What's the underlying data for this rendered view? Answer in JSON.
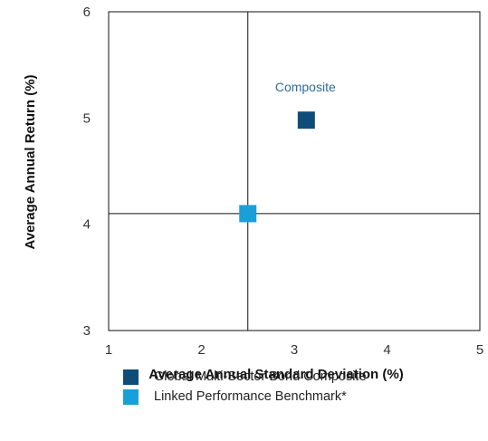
{
  "chart_data": {
    "type": "scatter",
    "title": "",
    "xlabel": "Average Annual Standard Deviation (%)",
    "ylabel": "Average Annual Return (%)",
    "xlim": [
      1,
      5
    ],
    "ylim": [
      3,
      6
    ],
    "xticks": [
      "1",
      "2",
      "3",
      "4",
      "5"
    ],
    "yticks": [
      "3",
      "4",
      "5",
      "6"
    ],
    "grid": false,
    "reference_lines": {
      "x": 2.5,
      "y": 4.1
    },
    "series": [
      {
        "name": "Global Multi-Sector Bond Composite",
        "x": 3.13,
        "y": 4.98,
        "color": "#0f4c7a"
      },
      {
        "name": "Linked Performance Benchmark*",
        "x": 2.5,
        "y": 4.1,
        "color": "#1a9fd8"
      }
    ],
    "annotations": [
      {
        "text": "Composite",
        "x": 3.12,
        "y": 5.25
      }
    ],
    "legend_position": "bottom"
  }
}
